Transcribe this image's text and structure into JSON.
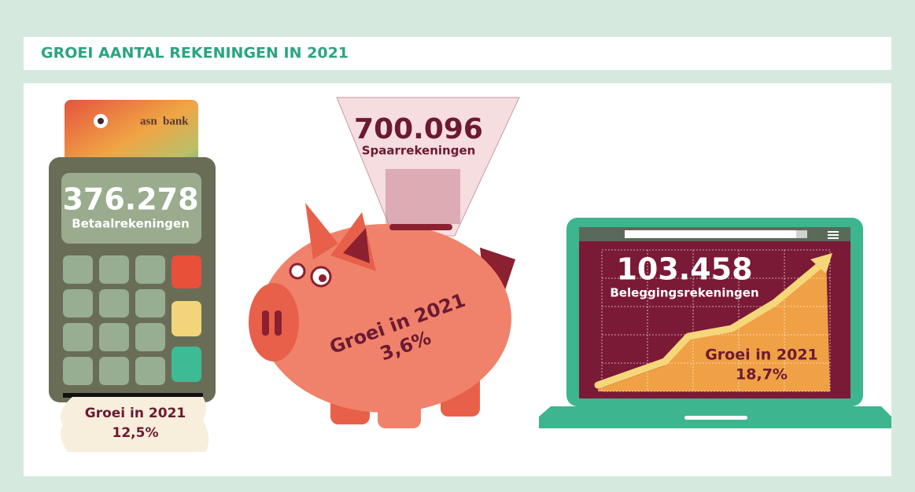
{
  "header": {
    "title": "GROEI AANTAL REKENINGEN IN 2021"
  },
  "items": [
    {
      "number": "376.278",
      "label": "Betaalrekeningen",
      "growth_label": "Groei in 2021",
      "growth": "12,5%",
      "card_logo": [
        "asn",
        "bank"
      ]
    },
    {
      "number": "700.096",
      "label": "Spaarrekeningen",
      "growth_label": "Groei in 2021",
      "growth": "3,6%"
    },
    {
      "number": "103.458",
      "label": "Beleggingsrekeningen",
      "growth_label": "Groei in 2021",
      "growth": "18,7%"
    }
  ]
}
